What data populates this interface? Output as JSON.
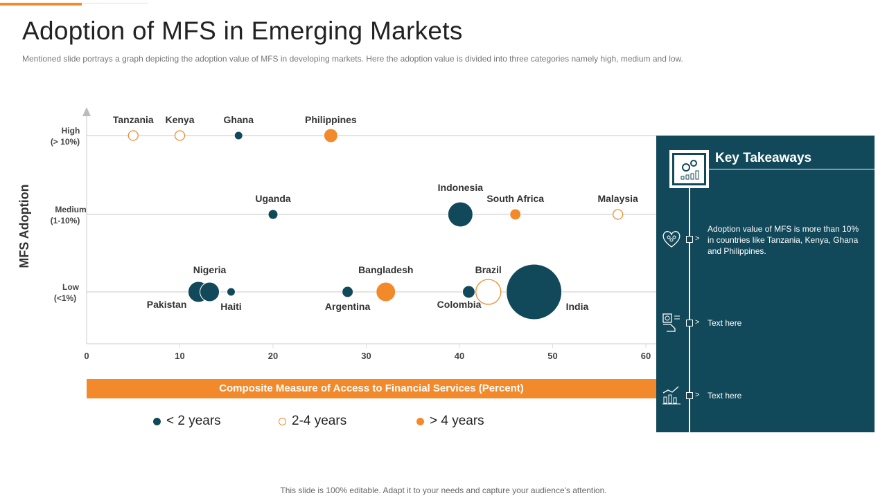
{
  "title": "Adoption of MFS in Emerging Markets",
  "subtitle": "Mentioned slide portrays a graph depicting the adoption value of MFS in developing  markets. Here the adoption value is divided  into three categories namely high, medium and low.",
  "chart_data": {
    "type": "scatter",
    "subtype": "bubble",
    "ylabel": "MFS Adoption",
    "xlabel": "Composite Measure of Access to Financial Services (Percent)",
    "xlim": [
      0,
      60
    ],
    "xticks": [
      "0",
      "10",
      "20",
      "30",
      "40",
      "50",
      "60"
    ],
    "y_categories": [
      {
        "key": "high",
        "label1": "High",
        "label2": "(> 10%)"
      },
      {
        "key": "medium",
        "label1": "Medium",
        "label2": "(1-10%)"
      },
      {
        "key": "low",
        "label1": "Low",
        "label2": "(<1%)"
      }
    ],
    "grid": "horizontal lines at categories",
    "legend": {
      "placement": "bottom",
      "entries": [
        {
          "key": "lt2",
          "label": "< 2 years",
          "color": "#12495a",
          "style": "filled"
        },
        {
          "key": "2to4",
          "label": "2-4 years",
          "color": "#f28a2b",
          "style": "hollow"
        },
        {
          "key": "gt4",
          "label": "> 4 years",
          "color": "#f28a2b",
          "style": "filled"
        }
      ]
    },
    "points": [
      {
        "name": "Tanzania",
        "x": 5,
        "y": "high",
        "size": 7,
        "group": "2to4",
        "label_pos": "above"
      },
      {
        "name": "Kenya",
        "x": 10,
        "y": "high",
        "size": 7,
        "group": "2to4",
        "label_pos": "above"
      },
      {
        "name": "Ghana",
        "x": 16.3,
        "y": "high",
        "size": 6,
        "group": "lt2",
        "label_pos": "above"
      },
      {
        "name": "Philippines",
        "x": 26.2,
        "y": "high",
        "size": 10,
        "group": "gt4",
        "label_pos": "above"
      },
      {
        "name": "Uganda",
        "x": 20,
        "y": "medium",
        "size": 7,
        "group": "lt2",
        "label_pos": "above"
      },
      {
        "name": "Indonesia",
        "x": 40.1,
        "y": "medium",
        "size": 18,
        "group": "lt2",
        "label_pos": "above"
      },
      {
        "name": "South Africa",
        "x": 46,
        "y": "medium",
        "size": 8,
        "group": "gt4",
        "label_pos": "above"
      },
      {
        "name": "Malaysia",
        "x": 57,
        "y": "medium",
        "size": 7,
        "group": "2to4",
        "label_pos": "above"
      },
      {
        "name": "Pakistan",
        "x": 12,
        "y": "low",
        "size": 15,
        "group": "lt2",
        "label_pos": "below-left"
      },
      {
        "name": "Nigeria",
        "x": 13.2,
        "y": "low",
        "size": 14,
        "group": "lt2",
        "label_pos": "above"
      },
      {
        "name": "Haiti",
        "x": 15.5,
        "y": "low",
        "size": 6,
        "group": "lt2",
        "label_pos": "below"
      },
      {
        "name": "Argentina",
        "x": 28,
        "y": "low",
        "size": 8,
        "group": "lt2",
        "label_pos": "below"
      },
      {
        "name": "Bangladesh",
        "x": 32.1,
        "y": "low",
        "size": 14,
        "group": "gt4",
        "label_pos": "above"
      },
      {
        "name": "Colombia",
        "x": 41,
        "y": "low",
        "size": 9,
        "group": "lt2",
        "label_pos": "below-left"
      },
      {
        "name": "Brazil",
        "x": 43.1,
        "y": "low",
        "size": 18,
        "group": "2to4",
        "label_pos": "above"
      },
      {
        "name": "India",
        "x": 48,
        "y": "low",
        "size": 40,
        "group": "lt2",
        "label_pos": "right"
      }
    ]
  },
  "panel": {
    "title": "Key Takeaways",
    "items": [
      {
        "icon": "heart-people-icon",
        "text": "Adoption value of MFS is more than 10% in countries like Tanzania, Kenya, Ghana and Philippines."
      },
      {
        "icon": "payment-hand-icon",
        "text": "Text here"
      },
      {
        "icon": "chart-growth-icon",
        "text": "Text here"
      }
    ]
  },
  "colors": {
    "teal": "#12495a",
    "orange": "#f28a2b"
  },
  "footer": "This slide is 100% editable. Adapt it to your needs and capture your audience's attention."
}
